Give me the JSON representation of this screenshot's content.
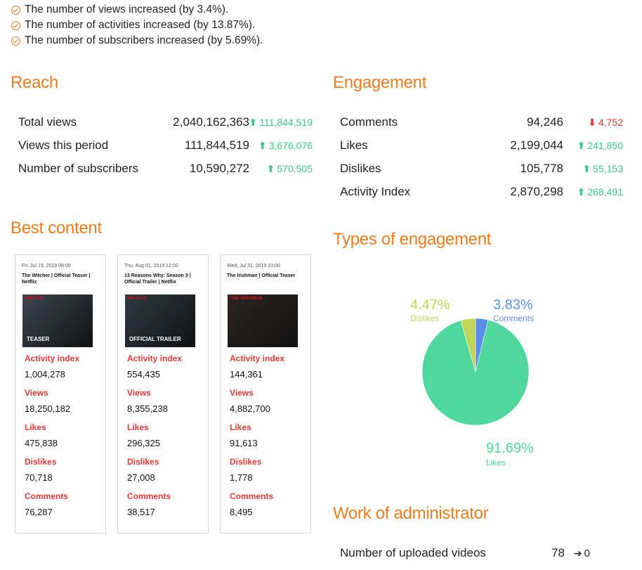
{
  "summary": [
    {
      "text": "The number of views increased (by 3.4%)."
    },
    {
      "text": "The number of activities increased (by 13.87%)."
    },
    {
      "text": "The number of subscribers increased (by 5.69%)."
    }
  ],
  "reach": {
    "title": "Reach",
    "rows": [
      {
        "label": "Total views",
        "value": "2,040,162,363",
        "delta": "111,844,519",
        "direction": "up"
      },
      {
        "label": "Views this period",
        "value": "111,844,519",
        "delta": "3,676,076",
        "direction": "up"
      },
      {
        "label": "Number of subscribers",
        "value": "10,590,272",
        "delta": "570,505",
        "direction": "up"
      }
    ]
  },
  "engagement": {
    "title": "Engagement",
    "rows": [
      {
        "label": "Comments",
        "value": "94,246",
        "delta": "4,752",
        "direction": "down"
      },
      {
        "label": "Likes",
        "value": "2,199,044",
        "delta": "241,850",
        "direction": "up"
      },
      {
        "label": "Dislikes",
        "value": "105,778",
        "delta": "55,153",
        "direction": "up"
      },
      {
        "label": "Activity Index",
        "value": "2,870,298",
        "delta": "268,491",
        "direction": "up"
      }
    ]
  },
  "best_content": {
    "title": "Best content",
    "labels": {
      "activity": "Activity index",
      "views": "Views",
      "likes": "Likes",
      "dislikes": "Dislikes",
      "comments": "Comments"
    },
    "cards": [
      {
        "date": "Fri, Jul 19, 2019 08:00",
        "title": "The Witcher | Official Teaser | Netflix",
        "thumb_brand": "NETFLIX",
        "thumb_caption": "TEASER",
        "thumb_color": "#3b4650",
        "activity": "1,004,278",
        "views": "18,250,182",
        "likes": "475,838",
        "dislikes": "70,718",
        "comments": "76,287"
      },
      {
        "date": "Thu, Aug 01, 2019 12:00",
        "title": "13 Reasons Why: Season 3 | Official Trailer | Netflix",
        "thumb_brand": "NETFLIX",
        "thumb_caption": "OFFICIAL TRAILER",
        "thumb_color": "#2d3a44",
        "activity": "554,435",
        "views": "8,355,238",
        "likes": "296,325",
        "dislikes": "27,008",
        "comments": "38,517"
      },
      {
        "date": "Wed, Jul 31, 2019 10:00",
        "title": "The Irishman | Official Teaser",
        "thumb_brand": "THE IRISHMAN",
        "thumb_caption": "",
        "thumb_color": "#2a2622",
        "activity": "144,361",
        "views": "4,882,700",
        "likes": "91,613",
        "dislikes": "1,778",
        "comments": "8,495"
      }
    ]
  },
  "types_of_engagement": {
    "title": "Types of engagement"
  },
  "chart_data": {
    "type": "pie",
    "slices": [
      {
        "name": "Likes",
        "value": 91.69,
        "label": "91.69%",
        "color": "#4fd89c"
      },
      {
        "name": "Dislikes",
        "value": 4.47,
        "label": "4.47%",
        "color": "#c2d65c"
      },
      {
        "name": "Comments",
        "value": 3.83,
        "label": "3.83%",
        "color": "#5b8ee8"
      }
    ]
  },
  "admin": {
    "title": "Work of administrator",
    "rows": [
      {
        "label": "Number of uploaded videos",
        "value": "78",
        "delta": "0",
        "direction": "right"
      }
    ]
  },
  "colors": {
    "accent": "#f07c1e",
    "up": "#3ec98a",
    "down": "#e53935"
  }
}
